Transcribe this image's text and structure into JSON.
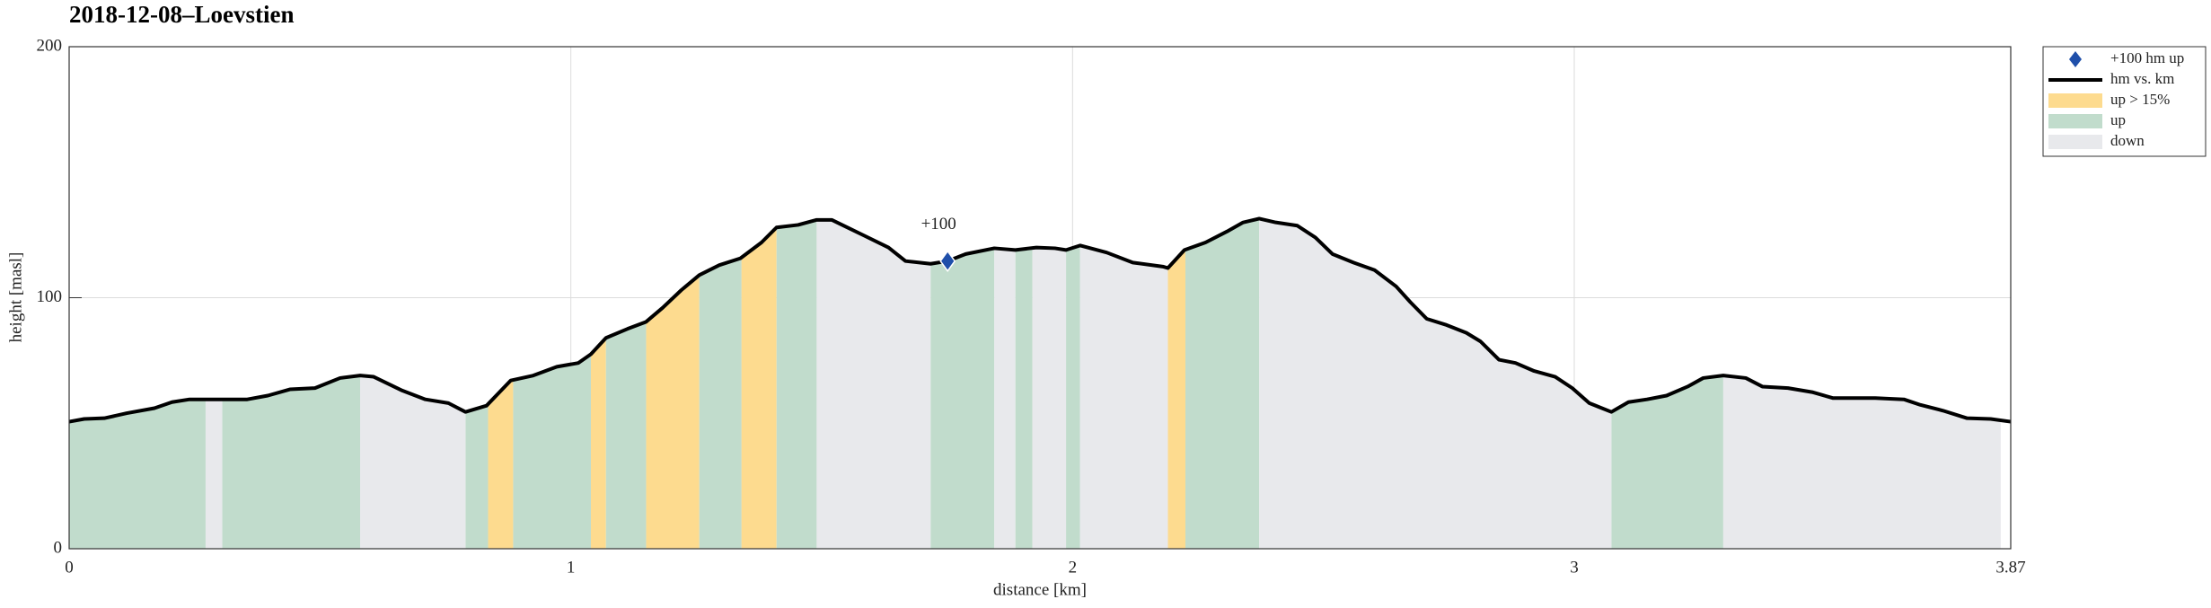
{
  "chart_data": {
    "type": "area",
    "title": "2018-12-08–Loevstien",
    "x_label": "distance [km]",
    "y_label": "height [masl]",
    "xlim": [
      0,
      3.87
    ],
    "ylim": [
      0,
      200
    ],
    "xticks": [
      0,
      1,
      2,
      3,
      3.87
    ],
    "yticks": [
      0,
      100,
      200
    ],
    "grid": true,
    "legend": "outside upper right",
    "marker": {
      "name": "+100 hm up",
      "label": "+100",
      "x": 1.751,
      "y": 114.6,
      "color": "#1f4faa"
    },
    "series": [
      {
        "name": "hm vs. km",
        "color": "#000000",
        "x": [
          0,
          0.03,
          0.07,
          0.115,
          0.17,
          0.205,
          0.24,
          0.355,
          0.396,
          0.44,
          0.49,
          0.54,
          0.58,
          0.607,
          0.664,
          0.71,
          0.756,
          0.79,
          0.832,
          0.88,
          0.925,
          0.972,
          1.015,
          1.04,
          1.07,
          1.113,
          1.15,
          1.183,
          1.22,
          1.256,
          1.296,
          1.338,
          1.38,
          1.41,
          1.453,
          1.49,
          1.52,
          1.582,
          1.633,
          1.667,
          1.717,
          1.751,
          1.787,
          1.844,
          1.886,
          1.928,
          1.965,
          1.987,
          2.015,
          2.068,
          2.12,
          2.18,
          2.19,
          2.223,
          2.265,
          2.308,
          2.34,
          2.372,
          2.405,
          2.448,
          2.484,
          2.518,
          2.56,
          2.602,
          2.645,
          2.673,
          2.706,
          2.743,
          2.785,
          2.813,
          2.85,
          2.883,
          2.92,
          2.962,
          2.996,
          3.03,
          3.074,
          3.108,
          3.145,
          3.184,
          3.226,
          3.257,
          3.297,
          3.342,
          3.375,
          3.426,
          3.474,
          3.516,
          3.6,
          3.657,
          3.69,
          3.735,
          3.783,
          3.83,
          3.87
        ],
        "values": [
          50.6,
          51.7,
          52,
          54,
          56,
          58.4,
          59.5,
          59.5,
          61,
          63.5,
          64,
          68,
          69,
          68.5,
          63,
          59.5,
          58,
          54.5,
          57,
          67,
          69,
          72.5,
          74,
          77.5,
          84,
          87.6,
          90.4,
          96,
          103,
          109,
          113,
          115.7,
          122,
          128,
          129,
          131,
          131,
          125,
          120,
          114.6,
          113.5,
          114.6,
          117.4,
          119.7,
          119,
          120,
          119.7,
          119,
          120.8,
          118,
          114,
          112.4,
          111.8,
          119,
          122,
          126.4,
          130,
          131.5,
          130,
          128.7,
          124,
          117.4,
          114,
          111,
          104.5,
          98.3,
          91.6,
          89.3,
          86,
          82.6,
          75.3,
          74,
          70.8,
          68.5,
          64,
          58,
          54.5,
          58.4,
          59.5,
          61,
          64.6,
          68,
          69,
          68,
          64.6,
          64,
          62.4,
          60,
          60,
          59.5,
          57.3,
          55,
          52,
          51.7,
          50.6
        ]
      }
    ],
    "zones": [
      {
        "name": "up > 15%",
        "color": "#fddb8f",
        "ranges": [
          [
            0.835,
            0.885
          ],
          [
            1.04,
            1.07
          ],
          [
            1.15,
            1.256
          ],
          [
            1.34,
            1.41
          ],
          [
            2.19,
            2.225
          ]
        ]
      },
      {
        "name": "up",
        "color": "#c1dccc",
        "ranges": [
          [
            0,
            0.272
          ],
          [
            0.305,
            0.58
          ],
          [
            0.79,
            0.835
          ],
          [
            0.885,
            1.04
          ],
          [
            1.07,
            1.15
          ],
          [
            1.256,
            1.34
          ],
          [
            1.41,
            1.49
          ],
          [
            1.717,
            1.844
          ],
          [
            1.886,
            1.92
          ],
          [
            1.987,
            2.015
          ],
          [
            2.225,
            2.372
          ],
          [
            3.074,
            3.297
          ]
        ]
      },
      {
        "name": "down",
        "color": "#e8e9ec",
        "ranges": [
          [
            0.272,
            0.305
          ],
          [
            0.58,
            0.79
          ],
          [
            1.49,
            1.717
          ],
          [
            1.844,
            1.886
          ],
          [
            1.92,
            1.987
          ],
          [
            2.015,
            2.19
          ],
          [
            2.372,
            3.074
          ],
          [
            3.297,
            3.85
          ]
        ]
      }
    ]
  }
}
